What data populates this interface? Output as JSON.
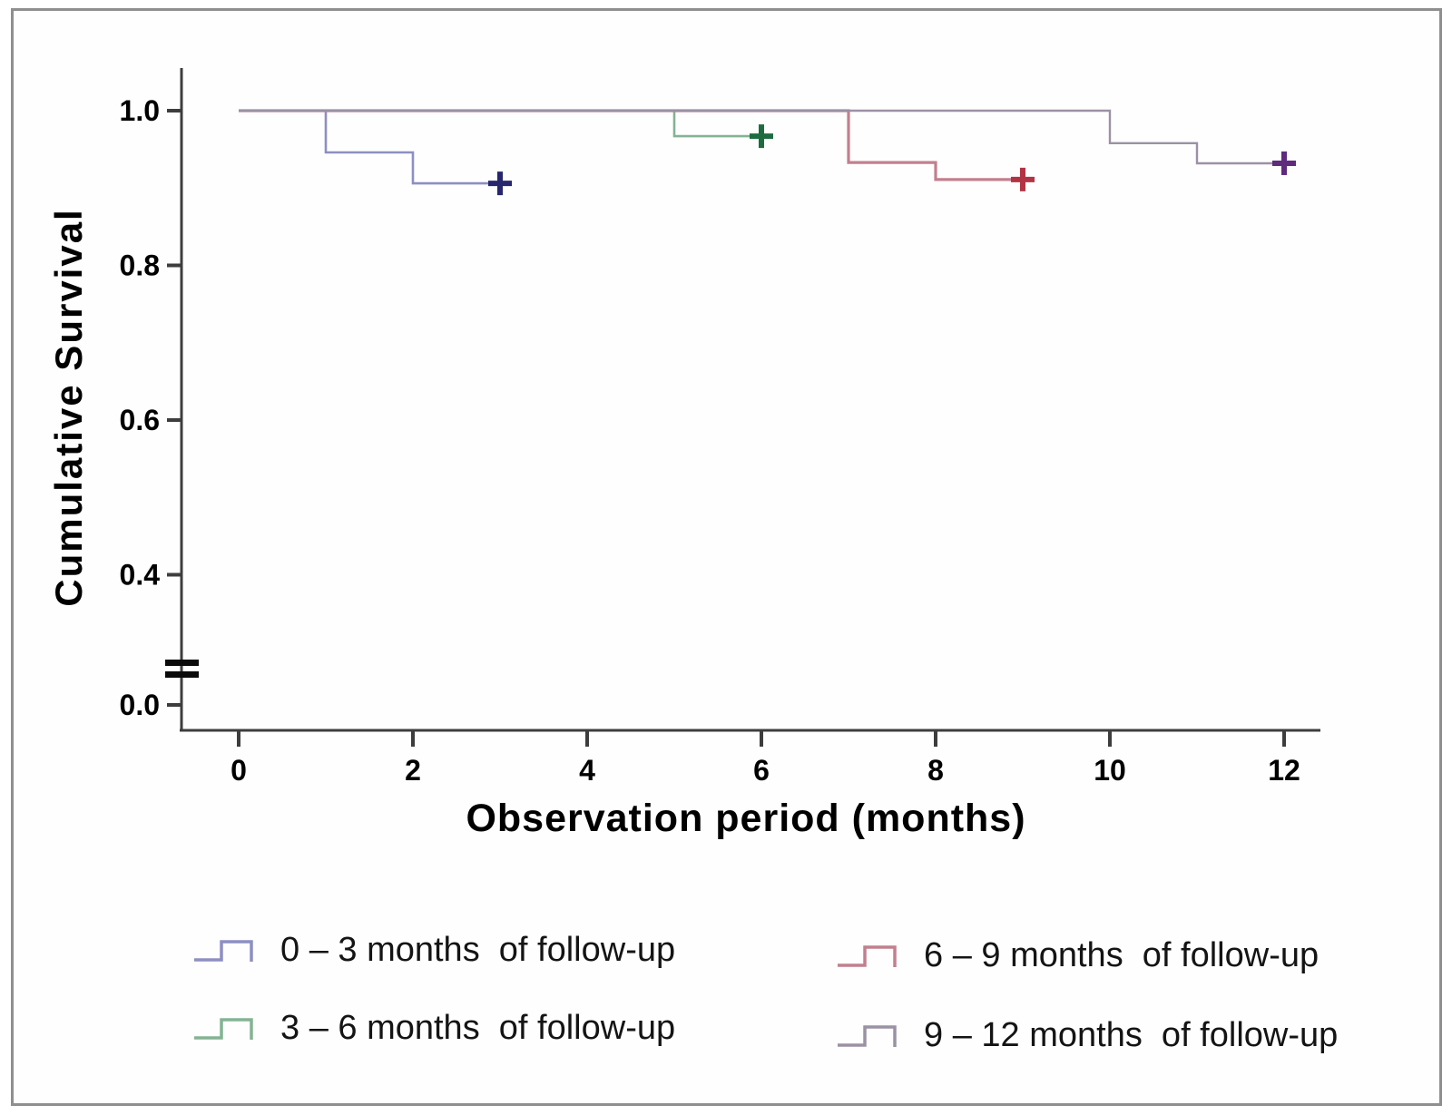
{
  "figure": {
    "background_color": "#fefefe",
    "border_color": "#8f8f8f"
  },
  "chart_data": {
    "type": "line",
    "subtype": "kaplan-meier-step-curves",
    "title": "",
    "xlabel": "Observation period (months)",
    "ylabel": "Cumulative Survival",
    "x_ticks": [
      "0",
      "2",
      "4",
      "6",
      "8",
      "10",
      "12"
    ],
    "x_tick_values": [
      0,
      2,
      4,
      6,
      8,
      10,
      12
    ],
    "xlim": [
      0,
      12.5
    ],
    "y_ticks": [
      {
        "label": "1.0",
        "value": 1.0
      },
      {
        "label": "0.8",
        "value": 0.8
      },
      {
        "label": "0.6",
        "value": 0.6
      },
      {
        "label": "0.4",
        "value": 0.4
      },
      {
        "label": "0.0",
        "value": 0.0
      }
    ],
    "y_axis_break_between": [
      0.4,
      0.0
    ],
    "grid": "off",
    "legend_position": "bottom-two-columns",
    "axis_color": "#3d3d3d",
    "series": [
      {
        "id": "0-3",
        "name": "0 – 3 months  of follow-up",
        "color": "#8d8fc2",
        "censor_color": "#26266e",
        "steps": [
          [
            0,
            1.0
          ],
          [
            1,
            1.0
          ],
          [
            1,
            0.946
          ],
          [
            2,
            0.946
          ],
          [
            2,
            0.906
          ],
          [
            3,
            0.906
          ]
        ],
        "censored": [
          [
            3,
            0.906
          ]
        ]
      },
      {
        "id": "3-6",
        "name": "3 – 6 months  of follow-up",
        "color": "#84b394",
        "censor_color": "#1e6b40",
        "steps": [
          [
            0,
            1.0
          ],
          [
            5,
            1.0
          ],
          [
            5,
            0.967
          ],
          [
            6,
            0.967
          ]
        ],
        "censored": [
          [
            6,
            0.967
          ]
        ]
      },
      {
        "id": "6-9",
        "name": "6 – 9 months  of follow-up",
        "color": "#c27f8e",
        "censor_color": "#b23344",
        "steps": [
          [
            0,
            1.0
          ],
          [
            7,
            1.0
          ],
          [
            7,
            0.933
          ],
          [
            8,
            0.933
          ],
          [
            8,
            0.911
          ],
          [
            9,
            0.911
          ]
        ],
        "censored": [
          [
            9,
            0.911
          ]
        ]
      },
      {
        "id": "9-12",
        "name": "9 – 12 months  of follow-up",
        "color": "#9b91a4",
        "censor_color": "#5e2b7d",
        "steps": [
          [
            0,
            1.0
          ],
          [
            10,
            1.0
          ],
          [
            10,
            0.958
          ],
          [
            11,
            0.958
          ],
          [
            11,
            0.932
          ],
          [
            12,
            0.932
          ]
        ],
        "censored": [
          [
            12,
            0.932
          ]
        ]
      }
    ]
  }
}
